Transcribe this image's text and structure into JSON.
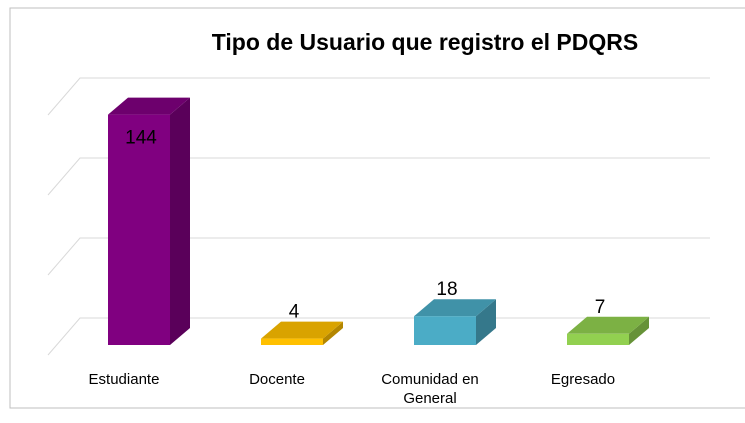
{
  "chart_data": {
    "type": "bar3d",
    "title": "Tipo de Usuario que registro el PDQRS",
    "categories": [
      "Estudiante",
      "Docente",
      "Comunidad en General",
      "Egresado"
    ],
    "values": [
      144,
      4,
      18,
      7
    ],
    "colors": [
      "#800080",
      "#ffc000",
      "#4bacc6",
      "#92d050"
    ],
    "ylim": [
      0,
      150
    ],
    "yticks": [
      0,
      50,
      100,
      150
    ],
    "grid": true
  }
}
